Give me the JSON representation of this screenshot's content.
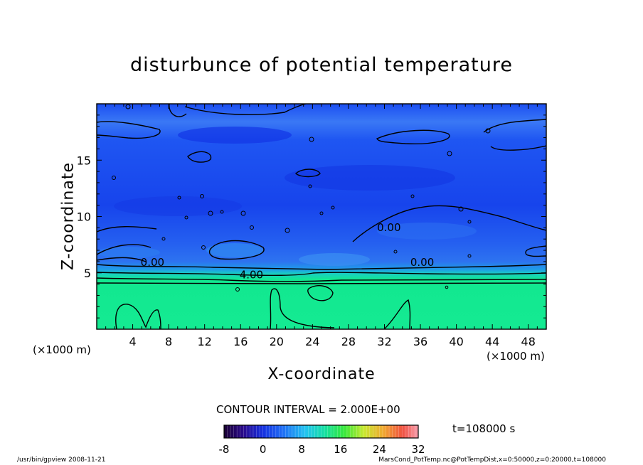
{
  "chart_data": {
    "type": "heatmap",
    "title": "disturbunce of potential temperature",
    "xlabel": "X-coordinate",
    "ylabel": "Z-coordinate",
    "x_unit": "(×1000 m)",
    "xlim": [
      0,
      50
    ],
    "ylim": [
      0,
      20
    ],
    "x_ticks": [
      4,
      8,
      12,
      16,
      20,
      24,
      28,
      32,
      36,
      40,
      44,
      48
    ],
    "y_ticks": [
      5,
      10,
      15
    ],
    "contour_interval_label": "CONTOUR INTERVAL = 2.000E+00",
    "contour_labels": [
      {
        "text": "0.00",
        "x": 6.2,
        "z": 5.6
      },
      {
        "text": "4.00",
        "x": 17.2,
        "z": 4.5
      },
      {
        "text": "0.00",
        "x": 36.2,
        "z": 5.6
      },
      {
        "text": "0.00",
        "x": 32.5,
        "z": 8.7
      }
    ],
    "colorbar": {
      "min": -8,
      "max": 32,
      "tick_labels": [
        "-8",
        "0",
        "8",
        "16",
        "24",
        "32"
      ],
      "tick_values": [
        -8,
        0,
        8,
        16,
        24,
        32
      ]
    },
    "time_label": "t=108000 s",
    "grid": false
  },
  "footer": {
    "left": "/usr/bin/gpview  2008-11-21",
    "right": "MarsCond_PotTemp.nc@PotTempDist,x=0:50000,z=0:20000,t=108000"
  },
  "colors": {
    "upper_field": "#1a4cf0",
    "lower_field": "#12e890",
    "contour": "#000000"
  }
}
